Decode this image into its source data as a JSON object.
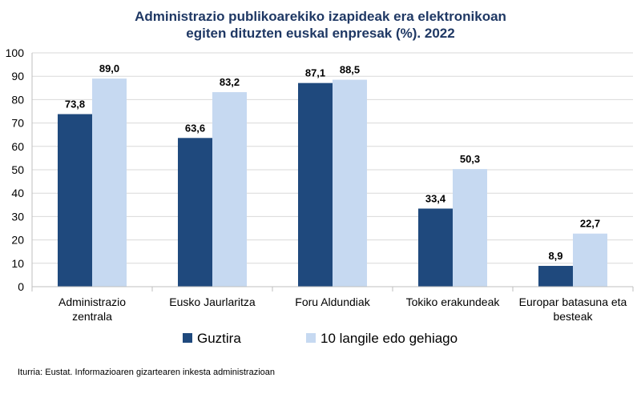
{
  "chart_data": {
    "type": "bar",
    "title": [
      "Administrazio publikoarekiko izapideak era elektronikoan",
      "egiten dituzten euskal enpresak (%). 2022"
    ],
    "categories": [
      [
        "Administrazio",
        "zentrala"
      ],
      [
        "Eusko Jaurlaritza"
      ],
      [
        "Foru Aldundiak"
      ],
      [
        "Tokiko erakundeak"
      ],
      [
        "Europar batasuna eta",
        "besteak"
      ]
    ],
    "series": [
      {
        "name": "Guztira",
        "color": "#1f497d",
        "values": [
          73.8,
          63.6,
          87.1,
          33.4,
          8.9
        ],
        "labels": [
          "73,8",
          "63,6",
          "87,1",
          "33,4",
          "8,9"
        ]
      },
      {
        "name": "10 langile edo gehiago",
        "color": "#c6d9f1",
        "values": [
          89.0,
          83.2,
          88.5,
          50.3,
          22.7
        ],
        "labels": [
          "89,0",
          "83,2",
          "88,5",
          "50,3",
          "22,7"
        ]
      }
    ],
    "ylim": [
      0,
      100
    ],
    "yticks": [
      "0",
      "10",
      "20",
      "30",
      "40",
      "50",
      "60",
      "70",
      "80",
      "90",
      "100"
    ],
    "grid": true,
    "legend": "bottom"
  },
  "source": "Iturria: Eustat. Informazioaren gizartearen inkesta administrazioan"
}
